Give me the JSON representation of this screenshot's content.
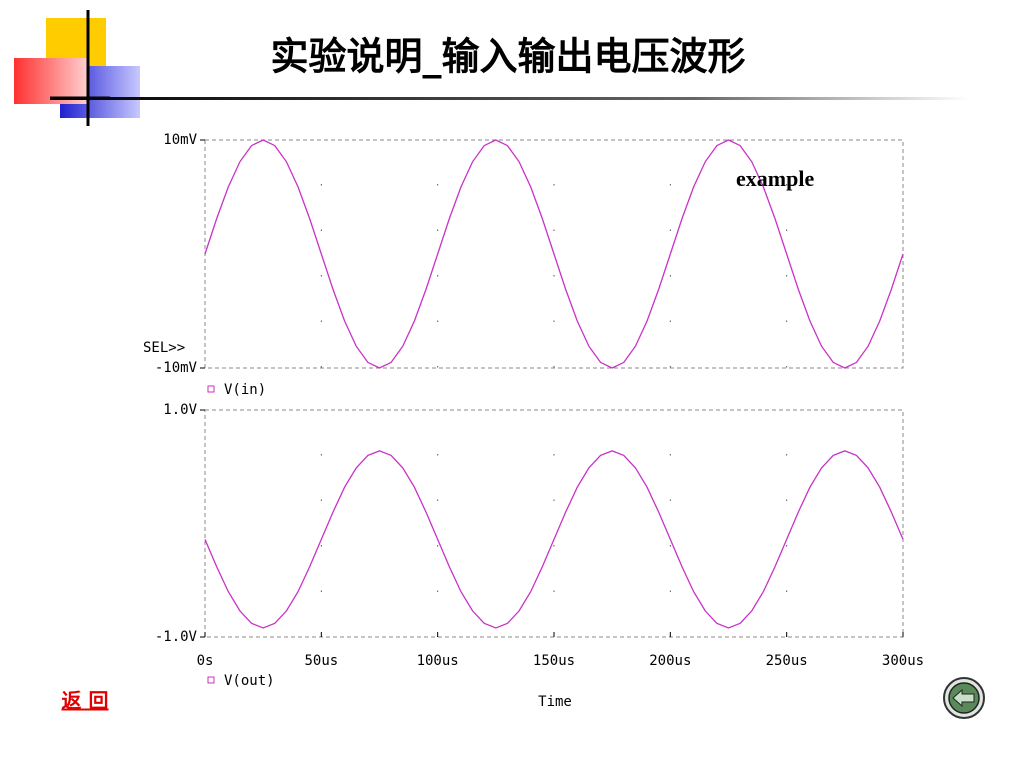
{
  "title": "实验说明_输入输出电压波形",
  "return_link": "返 回",
  "chart_data": [
    {
      "type": "line",
      "x": [
        0,
        5,
        10,
        15,
        20,
        25,
        30,
        35,
        40,
        45,
        50,
        55,
        60,
        65,
        70,
        75,
        80,
        85,
        90,
        95,
        100,
        105,
        110,
        115,
        120,
        125,
        130,
        135,
        140,
        145,
        150,
        155,
        160,
        165,
        170,
        175,
        180,
        185,
        190,
        195,
        200,
        205,
        210,
        215,
        220,
        225,
        230,
        235,
        240,
        245,
        250,
        255,
        260,
        265,
        270,
        275,
        280,
        285,
        290,
        295,
        300
      ],
      "series": [
        {
          "name": "V(in)",
          "color": "#c832c8",
          "values": [
            0,
            3.09,
            5.88,
            8.09,
            9.51,
            10,
            9.51,
            8.09,
            5.88,
            3.09,
            0,
            -3.09,
            -5.88,
            -8.09,
            -9.51,
            -10,
            -9.51,
            -8.09,
            -5.88,
            -3.09,
            0,
            3.09,
            5.88,
            8.09,
            9.51,
            10,
            9.51,
            8.09,
            5.88,
            3.09,
            0,
            -3.09,
            -5.88,
            -8.09,
            -9.51,
            -10,
            -9.51,
            -8.09,
            -5.88,
            -3.09,
            0,
            3.09,
            5.88,
            8.09,
            9.51,
            10,
            9.51,
            8.09,
            5.88,
            3.09,
            0,
            -3.09,
            -5.88,
            -8.09,
            -9.51,
            -10,
            -9.51,
            -8.09,
            -5.88,
            -3.09,
            0
          ]
        }
      ],
      "xlim": [
        0,
        300
      ],
      "xticks": [
        0,
        50,
        100,
        150,
        200,
        250,
        300
      ],
      "ylim": [
        -10,
        10
      ],
      "yticks": [
        {
          "value": 10,
          "label": "10mV"
        },
        {
          "value": -10,
          "label": "-10mV"
        }
      ],
      "grid": true,
      "cursor_label": "SEL>>",
      "annotation": "example"
    },
    {
      "type": "line",
      "x": [
        0,
        5,
        10,
        15,
        20,
        25,
        30,
        35,
        40,
        45,
        50,
        55,
        60,
        65,
        70,
        75,
        80,
        85,
        90,
        95,
        100,
        105,
        110,
        115,
        120,
        125,
        130,
        135,
        140,
        145,
        150,
        155,
        160,
        165,
        170,
        175,
        180,
        185,
        190,
        195,
        200,
        205,
        210,
        215,
        220,
        225,
        230,
        235,
        240,
        245,
        250,
        255,
        260,
        265,
        270,
        275,
        280,
        285,
        290,
        295,
        300
      ],
      "series": [
        {
          "name": "V(out)",
          "color": "#c832c8",
          "values": [
            -0.14,
            -0.38,
            -0.6,
            -0.77,
            -0.88,
            -0.92,
            -0.88,
            -0.77,
            -0.6,
            -0.38,
            -0.14,
            0.1,
            0.32,
            0.49,
            0.6,
            0.64,
            0.6,
            0.49,
            0.32,
            0.1,
            -0.14,
            -0.38,
            -0.6,
            -0.77,
            -0.88,
            -0.92,
            -0.88,
            -0.77,
            -0.6,
            -0.38,
            -0.14,
            0.1,
            0.32,
            0.49,
            0.6,
            0.64,
            0.6,
            0.49,
            0.32,
            0.1,
            -0.14,
            -0.38,
            -0.6,
            -0.77,
            -0.88,
            -0.92,
            -0.88,
            -0.77,
            -0.6,
            -0.38,
            -0.14,
            0.1,
            0.32,
            0.49,
            0.6,
            0.64,
            0.6,
            0.49,
            0.32,
            0.1,
            -0.14
          ]
        }
      ],
      "xlim": [
        0,
        300
      ],
      "xticks": [
        {
          "value": 0,
          "label": "0s"
        },
        {
          "value": 50,
          "label": "50us"
        },
        {
          "value": 100,
          "label": "100us"
        },
        {
          "value": 150,
          "label": "150us"
        },
        {
          "value": 200,
          "label": "200us"
        },
        {
          "value": 250,
          "label": "250us"
        },
        {
          "value": 300,
          "label": "300us"
        }
      ],
      "ylim": [
        -1,
        1
      ],
      "yticks": [
        {
          "value": 1,
          "label": "1.0V"
        },
        {
          "value": -1,
          "label": "-1.0V"
        }
      ],
      "grid": true,
      "x_label": "Time"
    }
  ]
}
